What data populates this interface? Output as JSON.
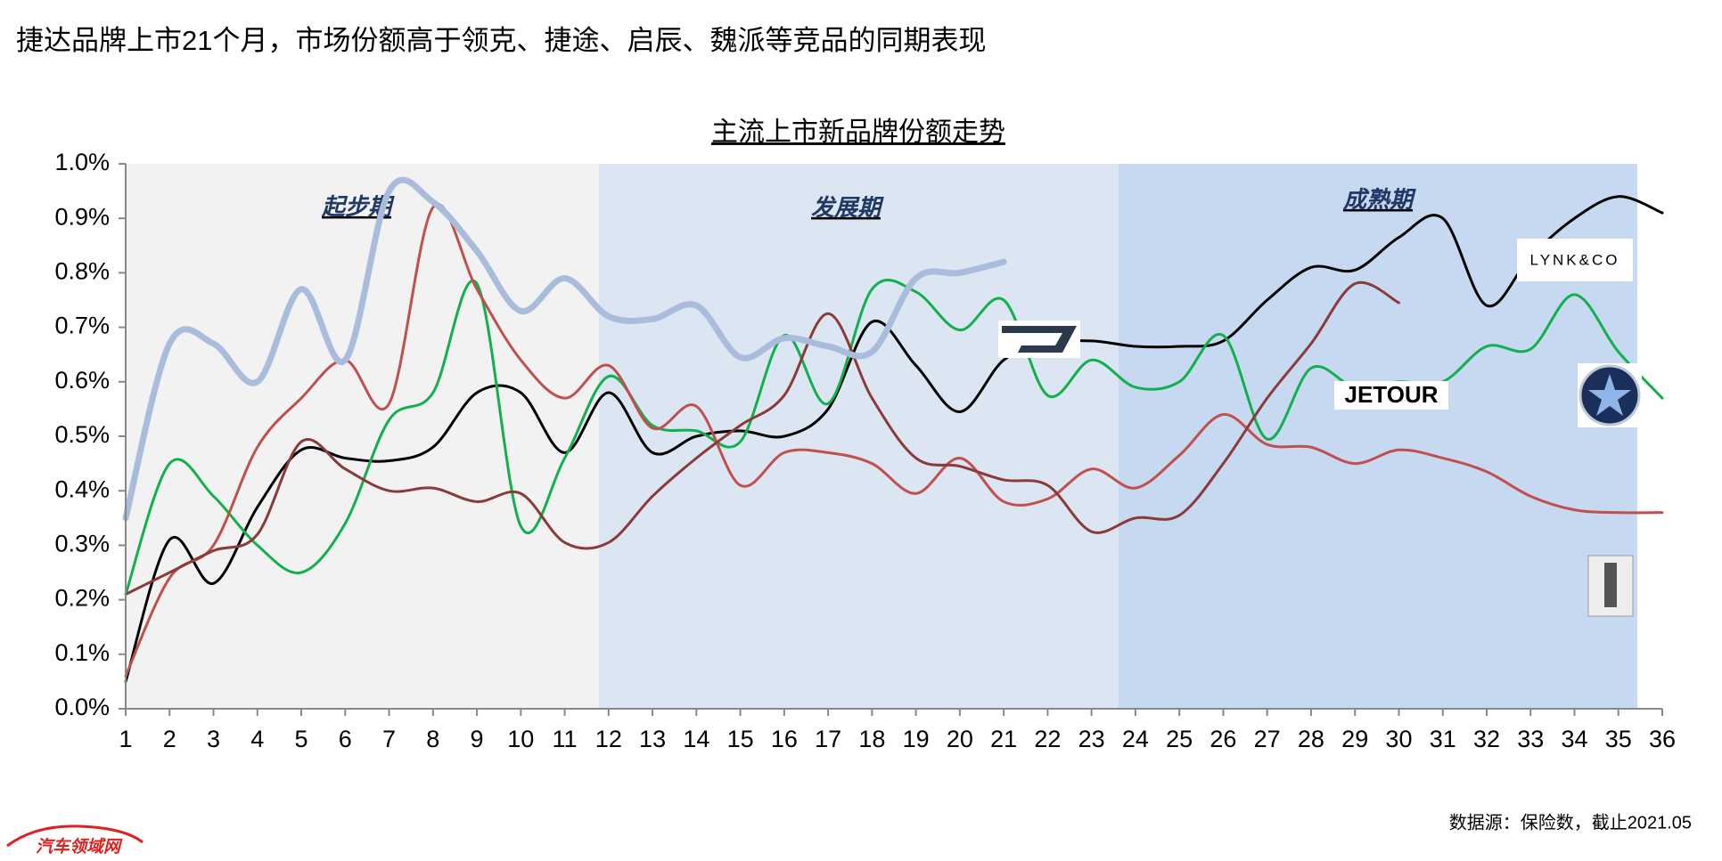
{
  "title": "捷达品牌上市21个月，市场份额高于领克、捷途、启辰、魏派等竞品的同期表现",
  "source": "数据源：保险数，截止2021.05",
  "watermark": "汽车领域网",
  "chart_data": {
    "type": "line",
    "title": "主流上市新品牌份额走势",
    "annotations": [
      "起步期",
      "发展期",
      "成熟期"
    ],
    "x": [
      1,
      2,
      3,
      4,
      5,
      6,
      7,
      8,
      9,
      10,
      11,
      12,
      13,
      14,
      15,
      16,
      17,
      18,
      19,
      20,
      21,
      22,
      23,
      24,
      25,
      26,
      27,
      28,
      29,
      30,
      31,
      32,
      33,
      34,
      35,
      36
    ],
    "xlim": [
      1,
      36
    ],
    "ylim": [
      0,
      1.0
    ],
    "yticks": [
      {
        "value": 0,
        "label": "0.0%"
      },
      {
        "value": 0.1,
        "label": "0.1%"
      },
      {
        "value": 0.2,
        "label": "0.2%"
      },
      {
        "value": 0.3,
        "label": "0.3%"
      },
      {
        "value": 0.4,
        "label": "0.4%"
      },
      {
        "value": 0.5,
        "label": "0.5%"
      },
      {
        "value": 0.6,
        "label": "0.6%"
      },
      {
        "value": 0.7,
        "label": "0.7%"
      },
      {
        "value": 0.8,
        "label": "0.8%"
      },
      {
        "value": 0.9,
        "label": "0.9%"
      },
      {
        "value": 1.0,
        "label": "1.0%"
      }
    ],
    "grid": false,
    "series": [
      {
        "color": "#a9bcdc",
        "width": 7,
        "values": [
          0.35,
          0.67,
          0.67,
          0.6,
          0.77,
          0.64,
          0.95,
          0.93,
          0.84,
          0.73,
          0.79,
          0.72,
          0.715,
          0.74,
          0.645,
          0.68,
          0.665,
          0.655,
          0.79,
          0.8,
          0.82,
          null,
          null,
          null,
          null,
          null,
          null,
          null,
          null,
          null,
          null,
          null,
          null,
          null,
          null,
          null
        ]
      },
      {
        "name": "LYNK&CO",
        "color": "#000000",
        "width": 3,
        "values": [
          0.05,
          0.31,
          0.23,
          0.37,
          0.475,
          0.46,
          0.455,
          0.48,
          0.58,
          0.58,
          0.47,
          0.58,
          0.47,
          0.5,
          0.51,
          0.5,
          0.55,
          0.71,
          0.63,
          0.545,
          0.64,
          0.67,
          0.675,
          0.665,
          0.665,
          0.675,
          0.75,
          0.81,
          0.805,
          0.865,
          0.9,
          0.74,
          0.83,
          0.9,
          0.94,
          0.91
        ]
      },
      {
        "color": "#12b04c",
        "width": 3,
        "values": [
          0.21,
          0.45,
          0.39,
          0.3,
          0.25,
          0.34,
          0.53,
          0.58,
          0.78,
          0.335,
          0.46,
          0.61,
          0.52,
          0.51,
          0.49,
          0.685,
          0.56,
          0.77,
          0.765,
          0.695,
          0.75,
          0.575,
          0.64,
          0.59,
          0.6,
          0.685,
          0.495,
          0.625,
          0.59,
          0.6,
          0.6,
          0.665,
          0.66,
          0.76,
          0.655,
          0.57
        ]
      },
      {
        "color": "#c0504d",
        "width": 3,
        "values": [
          0.06,
          0.24,
          0.3,
          0.48,
          0.57,
          0.64,
          0.56,
          0.92,
          0.77,
          0.64,
          0.57,
          0.63,
          0.515,
          0.555,
          0.41,
          0.47,
          0.47,
          0.45,
          0.395,
          0.46,
          0.38,
          0.385,
          0.44,
          0.405,
          0.465,
          0.54,
          0.485,
          0.48,
          0.45,
          0.475,
          0.46,
          0.435,
          0.39,
          0.365,
          0.36,
          0.36
        ]
      },
      {
        "name": "JETOUR",
        "color": "#8b3a3a",
        "width": 3,
        "values": [
          0.21,
          0.25,
          0.29,
          0.32,
          0.49,
          0.44,
          0.4,
          0.405,
          0.38,
          0.395,
          0.305,
          0.305,
          0.39,
          0.46,
          0.52,
          0.575,
          0.725,
          0.57,
          0.46,
          0.445,
          0.42,
          0.41,
          0.325,
          0.35,
          0.355,
          0.45,
          0.57,
          0.67,
          0.78,
          0.745,
          null,
          null,
          null,
          null,
          null,
          null
        ]
      }
    ]
  }
}
